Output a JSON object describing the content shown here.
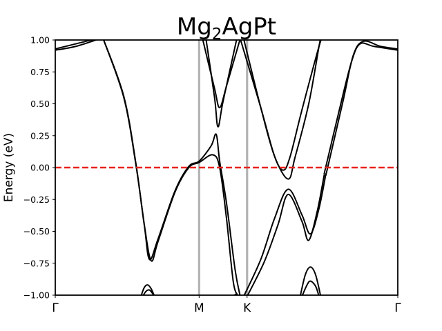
{
  "chart_data": {
    "type": "line",
    "title_main": "Mg",
    "title_sub": "2",
    "title_rest": "AgPt",
    "xlabel": "",
    "ylabel": "Energy (eV)",
    "ylim": [
      -1.0,
      1.0
    ],
    "yticks": [
      1.0,
      0.75,
      0.5,
      0.25,
      0.0,
      -0.25,
      -0.5,
      -0.75,
      -1.0
    ],
    "ytick_labels": [
      "1.00",
      "0.75",
      "0.50",
      "0.25",
      "0.00",
      "−0.25",
      "−0.50",
      "−0.75",
      "−1.00"
    ],
    "xlim": [
      0,
      1.0
    ],
    "high_symmetry_points": [
      {
        "label": "Γ",
        "x": 0.0
      },
      {
        "label": "M",
        "x": 0.42
      },
      {
        "label": "K",
        "x": 0.56
      },
      {
        "label": "Γ",
        "x": 1.0
      }
    ],
    "vlines": [
      0.42,
      0.56
    ],
    "fermi_level": 0.0,
    "colors": {
      "bands": "#000000",
      "fermi": "#e8231c",
      "vline": "#b2b2b2"
    },
    "series": [
      {
        "values": [
          [
            0.0,
            0.92
          ],
          [
            0.06,
            0.95
          ],
          [
            0.13,
            1.01
          ]
        ]
      },
      {
        "values": [
          [
            0.0,
            0.93
          ],
          [
            0.06,
            0.97
          ],
          [
            0.12,
            1.01
          ]
        ]
      },
      {
        "values": [
          [
            0.14,
            1.01
          ],
          [
            0.2,
            0.55
          ],
          [
            0.235,
            0.03
          ],
          [
            0.26,
            -0.45
          ],
          [
            0.275,
            -0.72
          ],
          [
            0.3,
            -0.56
          ],
          [
            0.35,
            -0.18
          ],
          [
            0.39,
            0.01
          ],
          [
            0.42,
            0.05
          ],
          [
            0.455,
            0.17
          ],
          [
            0.47,
            0.26
          ],
          [
            0.48,
            0.05
          ],
          [
            0.5,
            -0.28
          ],
          [
            0.525,
            -0.8
          ],
          [
            0.54,
            -1.01
          ]
        ]
      },
      {
        "values": [
          [
            0.14,
            1.01
          ],
          [
            0.2,
            0.56
          ],
          [
            0.235,
            0.04
          ],
          [
            0.26,
            -0.45
          ],
          [
            0.28,
            -0.73
          ],
          [
            0.3,
            -0.58
          ],
          [
            0.35,
            -0.19
          ],
          [
            0.39,
            0.0
          ],
          [
            0.42,
            0.04
          ],
          [
            0.46,
            0.1
          ],
          [
            0.48,
            0.0
          ],
          [
            0.5,
            -0.4
          ],
          [
            0.52,
            -0.9
          ],
          [
            0.535,
            -1.01
          ]
        ]
      },
      {
        "values": [
          [
            0.54,
            1.01
          ],
          [
            0.6,
            0.47
          ],
          [
            0.64,
            0.09
          ],
          [
            0.665,
            -0.02
          ],
          [
            0.685,
            0.08
          ],
          [
            0.72,
            0.45
          ],
          [
            0.77,
            0.95
          ],
          [
            0.78,
            1.01
          ]
        ]
      },
      {
        "values": [
          [
            0.55,
            1.01
          ],
          [
            0.6,
            0.47
          ],
          [
            0.64,
            0.09
          ],
          [
            0.68,
            -0.09
          ],
          [
            0.7,
            0.08
          ],
          [
            0.74,
            0.5
          ],
          [
            0.77,
            0.95
          ],
          [
            0.775,
            1.01
          ]
        ]
      },
      {
        "values": [
          [
            0.43,
            1.01
          ],
          [
            0.465,
            0.62
          ],
          [
            0.48,
            0.47
          ],
          [
            0.5,
            0.64
          ],
          [
            0.54,
            1.01
          ]
        ]
      },
      {
        "values": [
          [
            0.44,
            1.01
          ],
          [
            0.465,
            0.55
          ],
          [
            0.475,
            0.32
          ],
          [
            0.49,
            0.52
          ],
          [
            0.53,
            1.01
          ]
        ]
      },
      {
        "values": [
          [
            0.55,
            -1.01
          ],
          [
            0.6,
            -0.72
          ],
          [
            0.64,
            -0.4
          ],
          [
            0.68,
            -0.17
          ],
          [
            0.72,
            -0.37
          ],
          [
            0.745,
            -0.52
          ],
          [
            0.77,
            -0.32
          ],
          [
            0.79,
            -0.05
          ]
        ]
      },
      {
        "values": [
          [
            0.56,
            -1.01
          ],
          [
            0.61,
            -0.74
          ],
          [
            0.65,
            -0.45
          ],
          [
            0.68,
            -0.21
          ],
          [
            0.72,
            -0.42
          ],
          [
            0.74,
            -0.57
          ],
          [
            0.765,
            -0.34
          ],
          [
            0.785,
            -0.06
          ]
        ]
      },
      {
        "values": [
          [
            0.785,
            -0.05
          ],
          [
            0.83,
            0.46
          ],
          [
            0.865,
            0.83
          ],
          [
            0.89,
            0.97
          ],
          [
            0.93,
            0.95
          ],
          [
            1.0,
            0.92
          ]
        ]
      },
      {
        "values": [
          [
            0.79,
            -0.06
          ],
          [
            0.84,
            0.52
          ],
          [
            0.87,
            0.88
          ],
          [
            0.9,
            0.99
          ],
          [
            0.95,
            0.95
          ],
          [
            1.0,
            0.93
          ]
        ]
      },
      {
        "values": [
          [
            0.715,
            -1.01
          ],
          [
            0.73,
            -0.84
          ],
          [
            0.745,
            -0.78
          ],
          [
            0.76,
            -0.84
          ],
          [
            0.775,
            -1.01
          ]
        ]
      },
      {
        "values": [
          [
            0.72,
            -1.01
          ],
          [
            0.735,
            -0.92
          ],
          [
            0.745,
            -0.89
          ],
          [
            0.76,
            -0.93
          ],
          [
            0.77,
            -1.01
          ]
        ]
      },
      {
        "values": [
          [
            0.25,
            -1.01
          ],
          [
            0.26,
            -0.94
          ],
          [
            0.27,
            -0.92
          ],
          [
            0.28,
            -0.95
          ],
          [
            0.29,
            -1.01
          ]
        ]
      },
      {
        "values": [
          [
            0.255,
            -1.01
          ],
          [
            0.265,
            -0.97
          ],
          [
            0.275,
            -0.96
          ],
          [
            0.285,
            -0.99
          ],
          [
            0.29,
            -1.01
          ]
        ]
      },
      {
        "values": [
          [
            0.515,
            -1.01
          ],
          [
            0.53,
            -0.99
          ]
        ]
      },
      {
        "values": [
          [
            0.57,
            -1.01
          ],
          [
            0.575,
            -1.0
          ]
        ]
      }
    ]
  }
}
